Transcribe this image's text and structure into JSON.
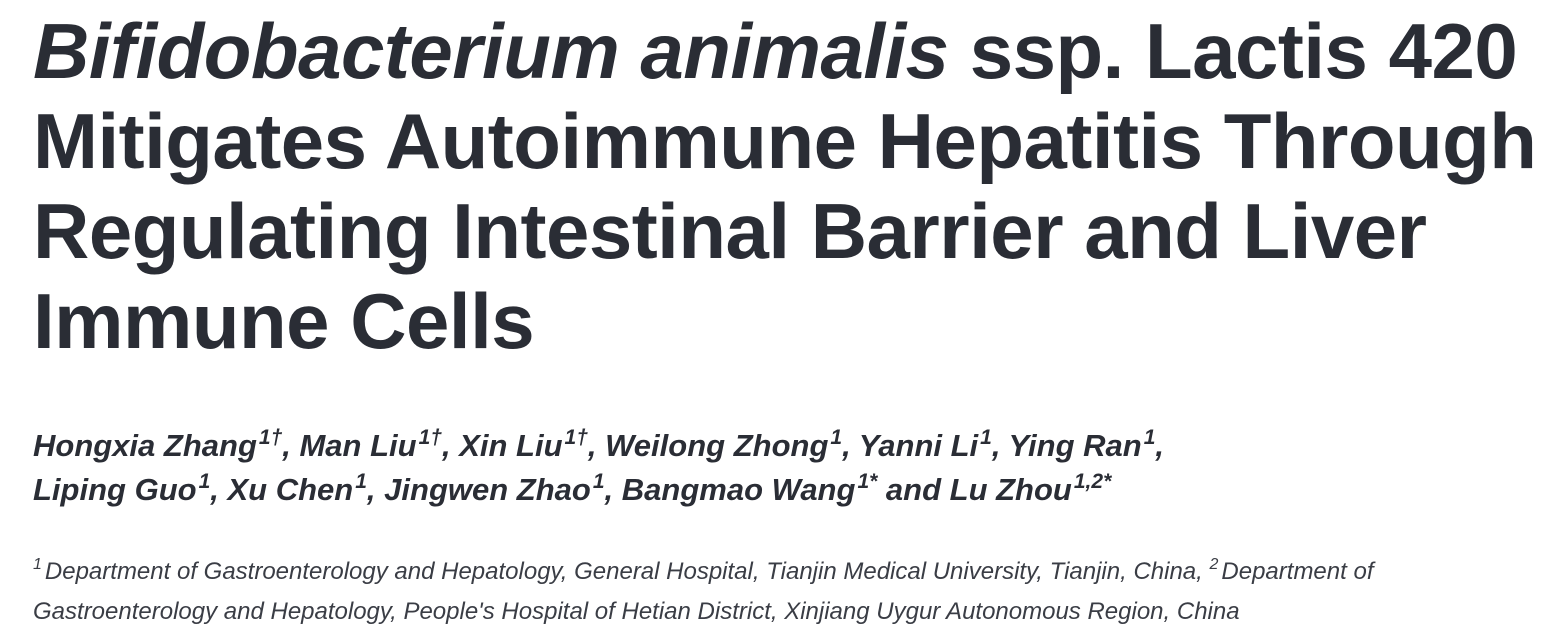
{
  "title": {
    "italic_part": "Bifidobacterium animalis",
    "rest": " ssp. Lactis 420 Mitigates Autoimmune Hepatitis Through Regulating Intestinal Barrier and Liver Immune Cells"
  },
  "authors": [
    {
      "name": "Hongxia Zhang",
      "marks": "1†",
      "sep": ", "
    },
    {
      "name": "Man Liu",
      "marks": "1†",
      "sep": ", "
    },
    {
      "name": "Xin Liu",
      "marks": "1†",
      "sep": ", "
    },
    {
      "name": "Weilong Zhong",
      "marks": "1",
      "sep": ", "
    },
    {
      "name": "Yanni Li",
      "marks": "1",
      "sep": ", "
    },
    {
      "name": "Ying Ran",
      "marks": "1",
      "sep": ", "
    },
    {
      "name": "Liping Guo",
      "marks": "1",
      "sep": ", "
    },
    {
      "name": "Xu Chen",
      "marks": "1",
      "sep": ", "
    },
    {
      "name": "Jingwen Zhao",
      "marks": "1",
      "sep": ", "
    },
    {
      "name": "Bangmao Wang",
      "marks": "1*",
      "sep": " and "
    },
    {
      "name": "Lu Zhou",
      "marks": "1,2*",
      "sep": ""
    }
  ],
  "affiliations": [
    {
      "num": "1",
      "text": "Department of Gastroenterology and Hepatology, General Hospital, Tianjin Medical University, Tianjin, China,"
    },
    {
      "num": "2",
      "text": "Department of Gastroenterology and Hepatology, People's Hospital of Hetian District, Xinjiang Uygur Autonomous Region, China"
    }
  ]
}
